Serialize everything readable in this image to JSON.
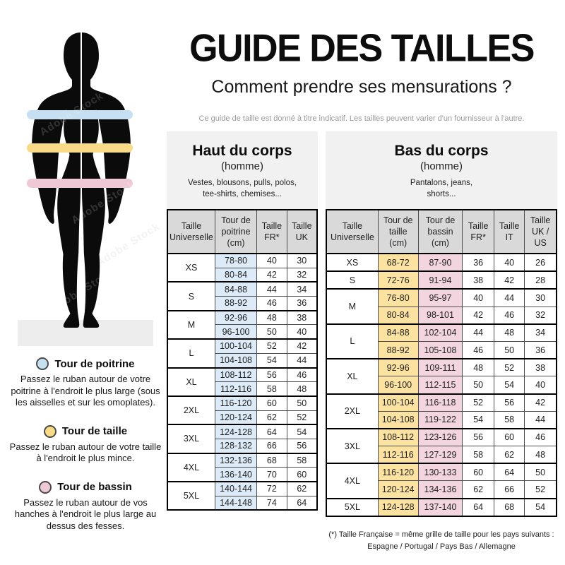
{
  "header": {
    "title": "GUIDE DES TAILLES",
    "subtitle": "Comment prendre ses mensurations ?",
    "disclaimer": "Ce guide de taille est donné à titre indicatif. Les tailles peuvent varier d'un fournisseur à l'autre."
  },
  "figure": {
    "watermark": "Adobe Stock",
    "bands": [
      {
        "name": "chest",
        "color": "#c6e0f1"
      },
      {
        "name": "waist",
        "color": "#f8da87"
      },
      {
        "name": "hips",
        "color": "#efc8d6"
      }
    ]
  },
  "legend": [
    {
      "title": "Tour de poitrine",
      "color": "#c6e0f1",
      "text": "Passez le ruban autour de votre poitrine à l'endroit le plus large (sous les aisselles et sur les omoplates)."
    },
    {
      "title": "Tour de taille",
      "color": "#f8da87",
      "text": "Passez le ruban autour de votre taille à l'endroit le plus mince."
    },
    {
      "title": "Tour de bassin",
      "color": "#efc8d6",
      "text": "Passez le ruban autour de vos hanches à l'endroit le plus large au dessus des fesses."
    }
  ],
  "left_panel": {
    "title": "Haut du corps",
    "subtitle": "(homme)",
    "items": "Vestes, blousons, pulls, polos,\ntee-shirts, chemises...",
    "table": {
      "headers": [
        "Taille Universelle",
        "Tour de poitrine (cm)",
        "Taille FR*",
        "Taille UK"
      ],
      "col_colors": [
        null,
        "#dcebf7",
        null,
        null
      ],
      "groups": [
        {
          "size": "XS",
          "rows": [
            [
              "78-80",
              "40",
              "30"
            ],
            [
              "80-84",
              "42",
              "32"
            ]
          ]
        },
        {
          "size": "S",
          "rows": [
            [
              "84-88",
              "44",
              "34"
            ],
            [
              "88-92",
              "46",
              "36"
            ]
          ]
        },
        {
          "size": "M",
          "rows": [
            [
              "92-96",
              "48",
              "38"
            ],
            [
              "96-100",
              "50",
              "40"
            ]
          ]
        },
        {
          "size": "L",
          "rows": [
            [
              "100-104",
              "52",
              "42"
            ],
            [
              "104-108",
              "54",
              "44"
            ]
          ]
        },
        {
          "size": "XL",
          "rows": [
            [
              "108-112",
              "56",
              "46"
            ],
            [
              "112-116",
              "58",
              "48"
            ]
          ]
        },
        {
          "size": "2XL",
          "rows": [
            [
              "116-120",
              "60",
              "50"
            ],
            [
              "120-124",
              "62",
              "52"
            ]
          ]
        },
        {
          "size": "3XL",
          "rows": [
            [
              "124-128",
              "64",
              "54"
            ],
            [
              "128-132",
              "66",
              "56"
            ]
          ]
        },
        {
          "size": "4XL",
          "rows": [
            [
              "132-136",
              "68",
              "58"
            ],
            [
              "136-140",
              "70",
              "60"
            ]
          ]
        },
        {
          "size": "5XL",
          "rows": [
            [
              "140-144",
              "72",
              "62"
            ],
            [
              "144-148",
              "74",
              "64"
            ]
          ]
        }
      ]
    }
  },
  "right_panel": {
    "title": "Bas du corps",
    "subtitle": "(homme)",
    "items": "Pantalons, jeans,\nshorts...",
    "table": {
      "headers": [
        "Taille Universelle",
        "Tour de taille (cm)",
        "Tour de bassin (cm)",
        "Taille FR*",
        "Taille IT",
        "Taille UK / US"
      ],
      "col_colors": [
        null,
        "#fbe2a0",
        "#f2d5df",
        null,
        null,
        null
      ],
      "groups": [
        {
          "size": "XS",
          "rows": [
            [
              "68-72",
              "87-90",
              "36",
              "40",
              "26"
            ]
          ]
        },
        {
          "size": "S",
          "rows": [
            [
              "72-76",
              "91-94",
              "38",
              "42",
              "28"
            ]
          ]
        },
        {
          "size": "M",
          "rows": [
            [
              "76-80",
              "95-97",
              "40",
              "44",
              "30"
            ],
            [
              "80-84",
              "98-101",
              "42",
              "46",
              "32"
            ]
          ]
        },
        {
          "size": "L",
          "rows": [
            [
              "84-88",
              "102-104",
              "44",
              "48",
              "34"
            ],
            [
              "88-92",
              "105-108",
              "46",
              "50",
              "36"
            ]
          ]
        },
        {
          "size": "XL",
          "rows": [
            [
              "92-96",
              "109-111",
              "48",
              "52",
              "38"
            ],
            [
              "96-100",
              "112-115",
              "50",
              "54",
              "40"
            ]
          ]
        },
        {
          "size": "2XL",
          "rows": [
            [
              "100-104",
              "116-118",
              "52",
              "56",
              "42"
            ],
            [
              "104-108",
              "119-122",
              "54",
              "58",
              "44"
            ]
          ]
        },
        {
          "size": "3XL",
          "rows": [
            [
              "108-112",
              "123-126",
              "56",
              "60",
              "46"
            ],
            [
              "112-116",
              "127-129",
              "58",
              "62",
              "48"
            ]
          ]
        },
        {
          "size": "4XL",
          "rows": [
            [
              "116-120",
              "130-133",
              "60",
              "64",
              "50"
            ],
            [
              "120-124",
              "134-136",
              "62",
              "66",
              "52"
            ]
          ]
        },
        {
          "size": "5XL",
          "rows": [
            [
              "124-128",
              "137-140",
              "64",
              "68",
              "54"
            ]
          ]
        }
      ]
    },
    "footnote_line1": "(*) Taille Française = même grille de taille pour les pays suivants :",
    "footnote_line2": "Espagne / Portugal / Pays Bas / Allemagne"
  }
}
